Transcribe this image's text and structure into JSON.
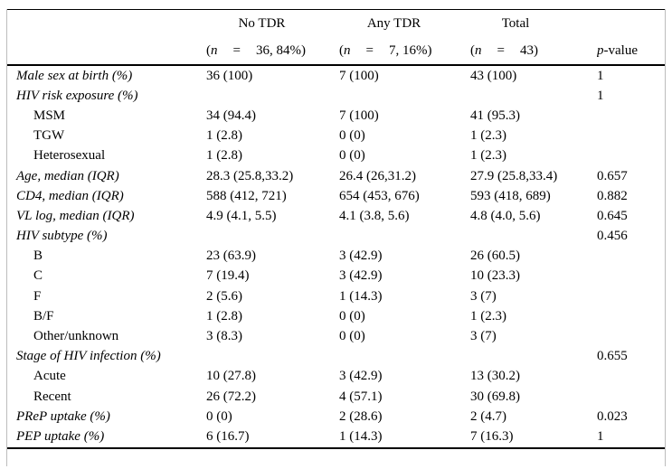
{
  "table": {
    "columns": {
      "groups": [
        {
          "label": "No TDR",
          "sub_open": "(",
          "sub_var": "n",
          "sub_eq": "=",
          "sub_val": "36, 84%)"
        },
        {
          "label": "Any TDR",
          "sub_open": "(",
          "sub_var": "n",
          "sub_eq": "=",
          "sub_val": "7, 16%)"
        },
        {
          "label": "Total",
          "sub_open": "(",
          "sub_var": "n",
          "sub_eq": "=",
          "sub_val": "43)"
        }
      ],
      "p_header": {
        "var": "p",
        "rest": "-value"
      }
    },
    "rows": [
      {
        "label": "Male sex at birth (%)",
        "indent": false,
        "no_tdr": "36 (100)",
        "any_tdr": "7 (100)",
        "total": "43 (100)",
        "p": "1"
      },
      {
        "label": "HIV risk exposure (%)",
        "indent": false,
        "no_tdr": "",
        "any_tdr": "",
        "total": "",
        "p": "1"
      },
      {
        "label": "MSM",
        "indent": true,
        "no_tdr": "34 (94.4)",
        "any_tdr": "7 (100)",
        "total": "41 (95.3)",
        "p": ""
      },
      {
        "label": "TGW",
        "indent": true,
        "no_tdr": "1 (2.8)",
        "any_tdr": "0 (0)",
        "total": "1 (2.3)",
        "p": ""
      },
      {
        "label": "Heterosexual",
        "indent": true,
        "no_tdr": "1 (2.8)",
        "any_tdr": "0 (0)",
        "total": "1 (2.3)",
        "p": ""
      },
      {
        "label": "Age, median (IQR)",
        "indent": false,
        "no_tdr": "28.3 (25.8,33.2)",
        "any_tdr": "26.4 (26,31.2)",
        "total": "27.9 (25.8,33.4)",
        "p": "0.657"
      },
      {
        "label": "CD4, median (IQR)",
        "indent": false,
        "no_tdr": "588 (412, 721)",
        "any_tdr": "654 (453, 676)",
        "total": "593 (418, 689)",
        "p": "0.882"
      },
      {
        "label": "VL log, median (IQR)",
        "indent": false,
        "no_tdr": "4.9 (4.1, 5.5)",
        "any_tdr": "4.1 (3.8, 5.6)",
        "total": "4.8 (4.0, 5.6)",
        "p": "0.645"
      },
      {
        "label": "HIV subtype (%)",
        "indent": false,
        "no_tdr": "",
        "any_tdr": "",
        "total": "",
        "p": "0.456"
      },
      {
        "label": "B",
        "indent": true,
        "no_tdr": "23 (63.9)",
        "any_tdr": "3 (42.9)",
        "total": "26 (60.5)",
        "p": ""
      },
      {
        "label": "C",
        "indent": true,
        "no_tdr": "7 (19.4)",
        "any_tdr": "3 (42.9)",
        "total": "10 (23.3)",
        "p": ""
      },
      {
        "label": "F",
        "indent": true,
        "no_tdr": "2 (5.6)",
        "any_tdr": "1 (14.3)",
        "total": "3 (7)",
        "p": ""
      },
      {
        "label": "B/F",
        "indent": true,
        "no_tdr": "1 (2.8)",
        "any_tdr": "0 (0)",
        "total": "1 (2.3)",
        "p": ""
      },
      {
        "label": "Other/unknown",
        "indent": true,
        "no_tdr": "3 (8.3)",
        "any_tdr": "0 (0)",
        "total": "3 (7)",
        "p": ""
      },
      {
        "label": "Stage of HIV infection (%)",
        "indent": false,
        "no_tdr": "",
        "any_tdr": "",
        "total": "",
        "p": "0.655"
      },
      {
        "label": "Acute",
        "indent": true,
        "no_tdr": "10 (27.8)",
        "any_tdr": "3 (42.9)",
        "total": "13 (30.2)",
        "p": ""
      },
      {
        "label": "Recent",
        "indent": true,
        "no_tdr": "26 (72.2)",
        "any_tdr": "4 (57.1)",
        "total": "30 (69.8)",
        "p": ""
      },
      {
        "label": "PReP uptake (%)",
        "indent": false,
        "no_tdr": "0 (0)",
        "any_tdr": "2 (28.6)",
        "total": "2 (4.7)",
        "p": "0.023"
      },
      {
        "label": "PEP uptake (%)",
        "indent": false,
        "no_tdr": "6 (16.7)",
        "any_tdr": "1 (14.3)",
        "total": "7 (16.3)",
        "p": "1"
      }
    ]
  }
}
